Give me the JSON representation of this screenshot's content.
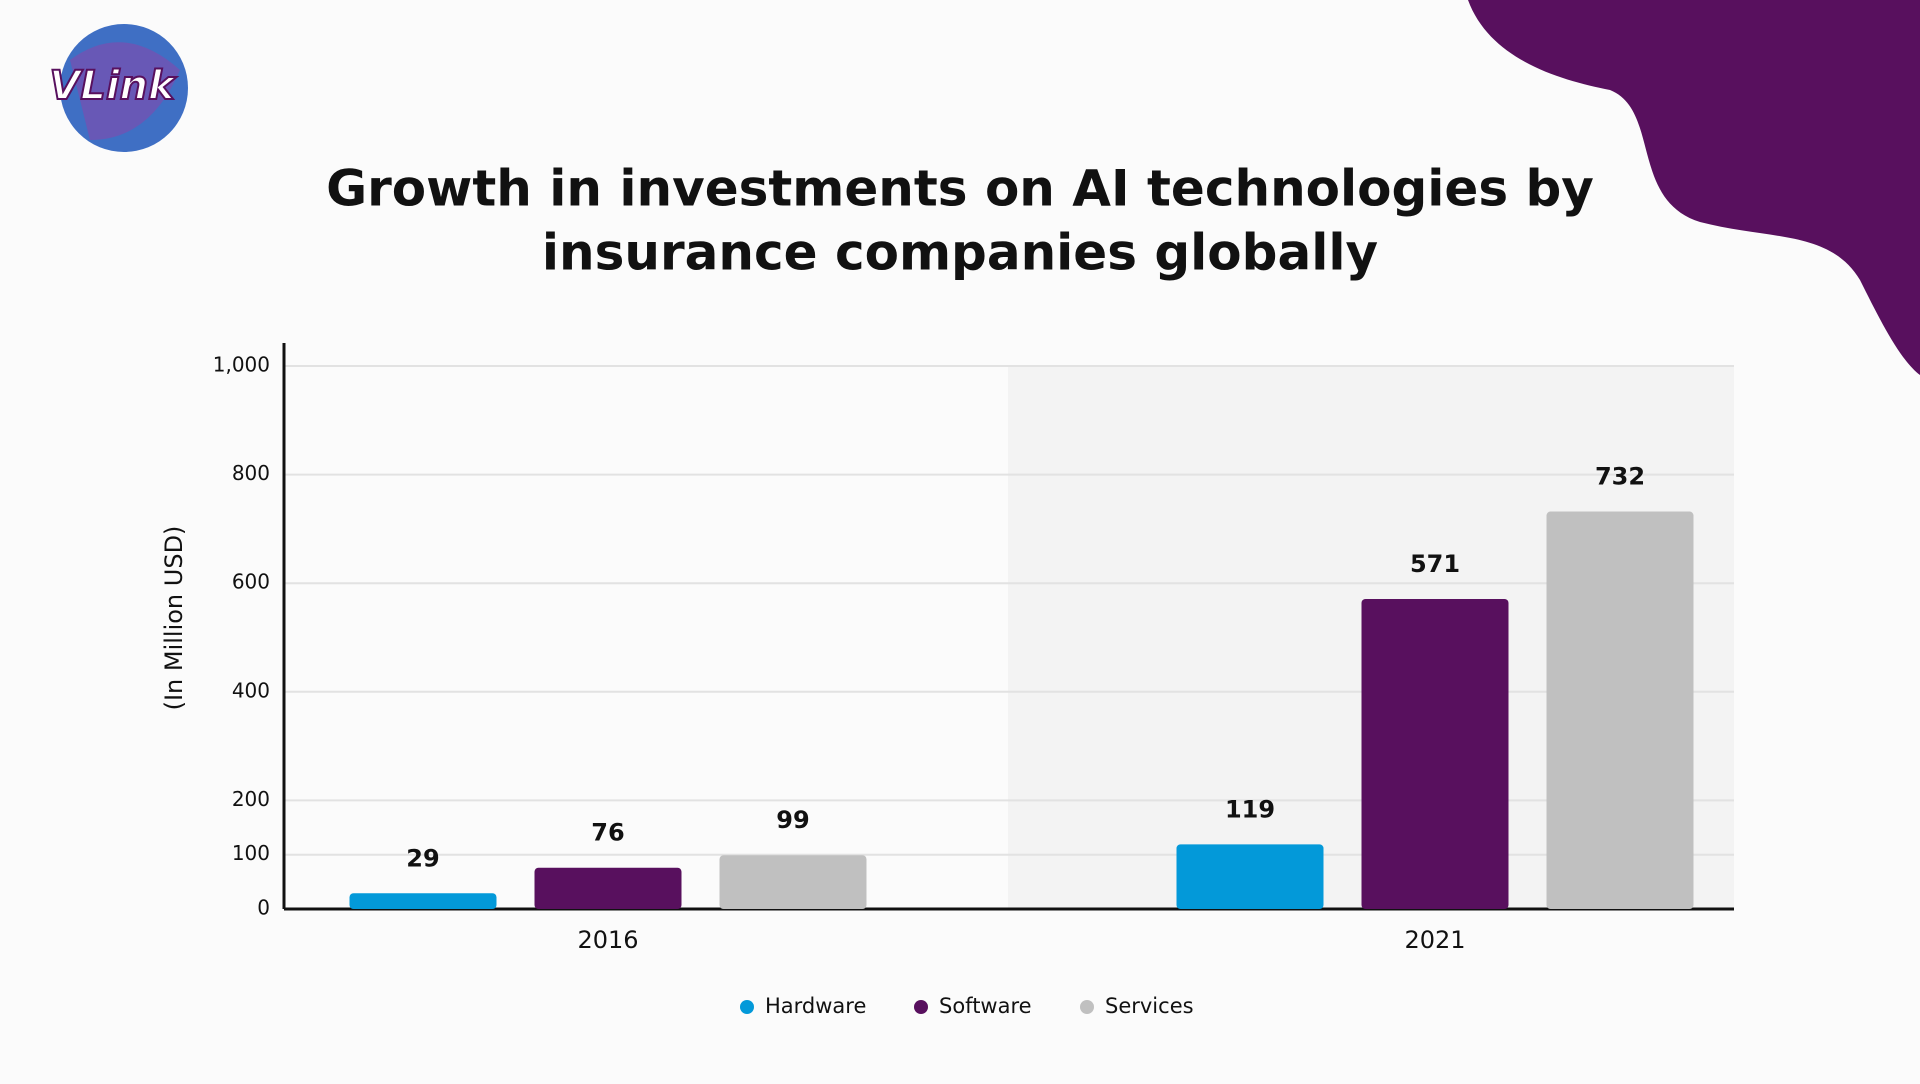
{
  "logo": "VLink",
  "chart_data": {
    "type": "bar",
    "title": [
      "Growth in investments on AI technologies by",
      "insurance companies globally"
    ],
    "y_label": "(In Million USD)",
    "categories": [
      "2016",
      "2021"
    ],
    "series": [
      {
        "name": "Hardware",
        "color": "#0399d9",
        "values": [
          29,
          119
        ]
      },
      {
        "name": "Software",
        "color": "#58105e",
        "values": [
          76,
          571
        ]
      },
      {
        "name": "Services",
        "color": "#c0c0c0",
        "values": [
          99,
          732
        ]
      }
    ],
    "ylim": [
      0,
      1000
    ],
    "yticks": [
      0,
      100,
      200,
      400,
      600,
      800,
      {
        "value": 1000,
        "label": "1,000"
      }
    ],
    "grid": true,
    "legend": "bottom"
  }
}
